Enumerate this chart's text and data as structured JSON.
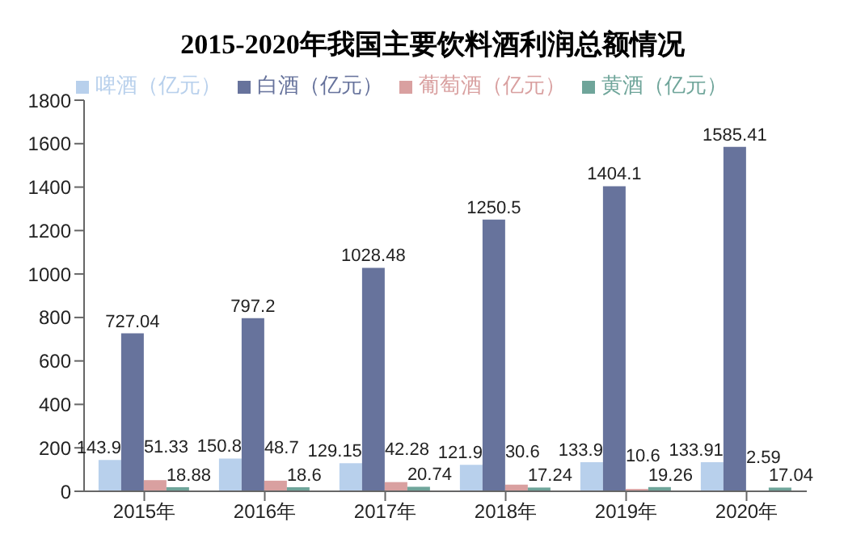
{
  "chart_data": {
    "type": "bar",
    "title": "2015-2020年我国主要饮料酒利润总额情况",
    "categories": [
      "2015年",
      "2016年",
      "2017年",
      "2018年",
      "2019年",
      "2020年"
    ],
    "series": [
      {
        "name": "啤酒（亿元）",
        "color": "#b8d0ec",
        "values": [
          143.9,
          150.8,
          129.15,
          121.9,
          133.9,
          133.91
        ]
      },
      {
        "name": "白酒（亿元）",
        "color": "#67739c",
        "values": [
          727.04,
          797.2,
          1028.48,
          1250.5,
          1404.1,
          1585.41
        ]
      },
      {
        "name": "葡萄酒（亿元）",
        "color": "#d9a0a0",
        "values": [
          51.33,
          48.7,
          42.28,
          30.6,
          10.6,
          2.59
        ]
      },
      {
        "name": "黄酒（亿元）",
        "color": "#6fa59a",
        "values": [
          18.88,
          18.6,
          20.74,
          17.24,
          19.26,
          17.04
        ]
      }
    ],
    "ylim": [
      0,
      1800
    ],
    "yticks": [
      0,
      200,
      400,
      600,
      800,
      1000,
      1200,
      1400,
      1600,
      1800
    ],
    "grid": false,
    "legend": "top",
    "data_labels": true
  }
}
